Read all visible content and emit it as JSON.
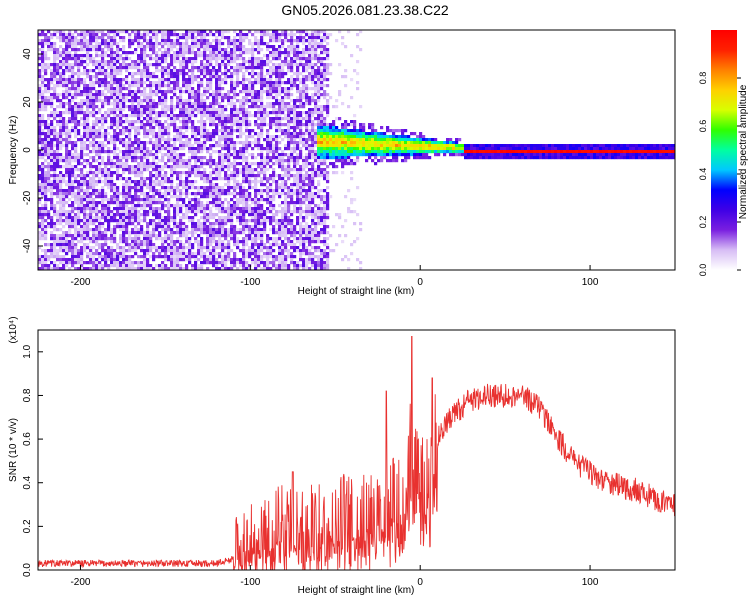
{
  "title": "GN05.2026.081.23.38.C22",
  "chart_data": [
    {
      "type": "heatmap",
      "xlabel": "Height of straight line (km)",
      "ylabel": "Frequency (Hz)",
      "xlim": [
        -225,
        150
      ],
      "ylim": [
        -50,
        50
      ],
      "xticks": [
        -200,
        -100,
        0,
        100
      ],
      "yticks": [
        -40,
        -20,
        0,
        20,
        40
      ],
      "grid": false,
      "colorbar": {
        "label": "Normalized spectral amplitude",
        "range": [
          0.0,
          1.0
        ],
        "ticks": [
          0.0,
          0.2,
          0.4,
          0.6,
          0.8
        ],
        "colors": [
          "#ffffff",
          "#d7bdf5",
          "#7a1fe0",
          "#3f00e6",
          "#0000ff",
          "#00c8ff",
          "#00ffa0",
          "#30ff00",
          "#d8ff00",
          "#ffd000",
          "#ff8000",
          "#ff2000",
          "#ff0000"
        ]
      },
      "regions": [
        {
          "x": [
            -225,
            -55
          ],
          "y": [
            -50,
            50
          ],
          "amplitude": [
            0.0,
            0.25
          ],
          "description": "broadband noise"
        },
        {
          "x": [
            -55,
            -35
          ],
          "y": [
            -50,
            50
          ],
          "amplitude": [
            0.0,
            0.1
          ]
        },
        {
          "x": [
            -60,
            20
          ],
          "y": [
            -3,
            8
          ],
          "amplitude": [
            0.2,
            0.7
          ]
        },
        {
          "x": [
            20,
            150
          ],
          "y": [
            -1,
            1
          ],
          "amplitude": [
            0.5,
            0.95
          ]
        }
      ]
    },
    {
      "type": "line",
      "xlabel": "Height of straight line (km)",
      "ylabel": "SNR (10 * v/v)",
      "y_multiplier": "(x10⁴)",
      "xlim": [
        -225,
        150
      ],
      "ylim": [
        0,
        1.1
      ],
      "xticks": [
        -200,
        -100,
        0,
        100
      ],
      "yticks": [
        0.0,
        0.2,
        0.4,
        0.6,
        0.8,
        1.0
      ],
      "grid": false,
      "series": [
        {
          "color": "#e8312f",
          "x": [
            -225,
            -200,
            -150,
            -120,
            -110,
            -100,
            -90,
            -80,
            -70,
            -60,
            -50,
            -40,
            -30,
            -20,
            -10,
            -5,
            0,
            10,
            20,
            30,
            40,
            50,
            60,
            70,
            80,
            90,
            100,
            110,
            120,
            130,
            140,
            150
          ],
          "y": [
            0.03,
            0.03,
            0.03,
            0.03,
            0.05,
            0.1,
            0.13,
            0.18,
            0.15,
            0.18,
            0.2,
            0.2,
            0.22,
            0.25,
            0.3,
            0.5,
            0.35,
            0.6,
            0.72,
            0.78,
            0.8,
            0.8,
            0.8,
            0.75,
            0.62,
            0.5,
            0.45,
            0.4,
            0.38,
            0.36,
            0.32,
            0.3
          ],
          "spikes": [
            {
              "x": -5,
              "y": 1.07
            },
            {
              "x": 7,
              "y": 0.88
            },
            {
              "x": -20,
              "y": 0.82
            },
            {
              "x": -75,
              "y": 0.45
            }
          ]
        }
      ]
    }
  ]
}
